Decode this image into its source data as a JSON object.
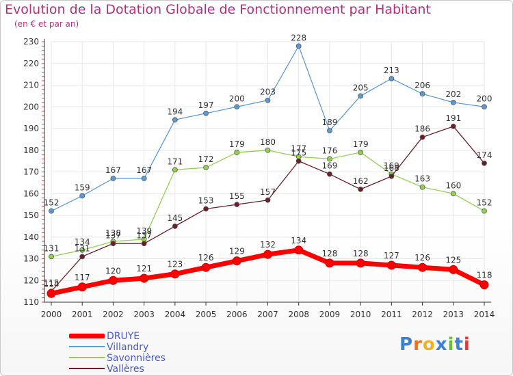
{
  "header": {
    "title": "Evolution de la Dotation Globale de Fonctionnement par Habitant",
    "subtitle": "(en € et par an)"
  },
  "logo": {
    "text": "Proxiti",
    "colors": [
      "#3b7fd6",
      "#e8741a",
      "#f2b21e",
      "#3b7fd6",
      "#6cbf2f",
      "#3b7fd6",
      "#e23a3a"
    ]
  },
  "chart_data": {
    "type": "line",
    "x": [
      2000,
      2001,
      2002,
      2003,
      2004,
      2005,
      2006,
      2007,
      2008,
      2009,
      2010,
      2011,
      2012,
      2013,
      2014
    ],
    "ylim": [
      110,
      230
    ],
    "yticks": [
      110,
      120,
      130,
      140,
      150,
      160,
      170,
      180,
      190,
      200,
      210,
      220,
      230
    ],
    "grid": true,
    "legend_position": "bottom-left",
    "series": [
      {
        "name": "DRUYE",
        "color": "#ff0000",
        "values": [
          114,
          117,
          120,
          121,
          123,
          126,
          129,
          132,
          134,
          128,
          128,
          127,
          126,
          125,
          118
        ]
      },
      {
        "name": "Villandry",
        "color": "#5b9bd5",
        "values": [
          152,
          159,
          167,
          167,
          194,
          197,
          200,
          203,
          228,
          189,
          205,
          213,
          206,
          202,
          200
        ]
      },
      {
        "name": "Savonnières",
        "color": "#92d050",
        "values": [
          131,
          134,
          138,
          139,
          171,
          172,
          179,
          180,
          177,
          176,
          179,
          169,
          163,
          160,
          152
        ]
      },
      {
        "name": "Vallères",
        "color": "#6b1e28",
        "values": [
          115,
          131,
          137,
          137,
          145,
          153,
          155,
          157,
          175,
          169,
          162,
          168,
          186,
          191,
          174
        ]
      }
    ]
  }
}
